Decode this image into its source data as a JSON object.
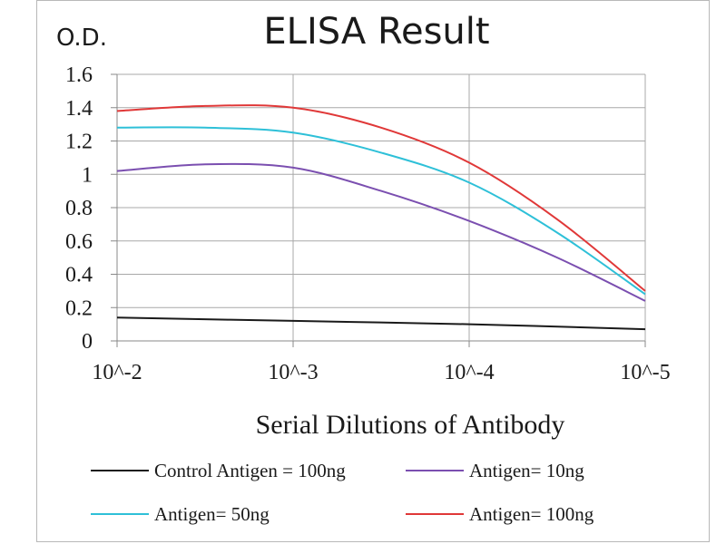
{
  "chart_data": {
    "type": "line",
    "title": "ELISA Result",
    "ylabel": "O.D.",
    "xlabel": "Serial Dilutions  of Antibody",
    "ylim": [
      0,
      1.6
    ],
    "y_ticks": [
      "0",
      "0.2",
      "0.4",
      "0.6",
      "0.8",
      "1",
      "1.2",
      "1.4",
      "1.6"
    ],
    "categories": [
      "10^-2",
      "10^-3",
      "10^-4",
      "10^-5"
    ],
    "grid": true,
    "legend_position": "bottom",
    "series": [
      {
        "name": "Control Antigen = 100ng",
        "color": "#1a1a1a",
        "points": [
          [
            0,
            0.14
          ],
          [
            1,
            0.12
          ],
          [
            2,
            0.1
          ],
          [
            3,
            0.07
          ]
        ]
      },
      {
        "name": "Antigen= 10ng",
        "color": "#7b4fb0",
        "points": [
          [
            0,
            1.02
          ],
          [
            0.5,
            1.06
          ],
          [
            1,
            1.04
          ],
          [
            1.5,
            0.9
          ],
          [
            2,
            0.72
          ],
          [
            2.5,
            0.5
          ],
          [
            3,
            0.24
          ]
        ]
      },
      {
        "name": "Antigen= 50ng",
        "color": "#2ec0d8",
        "points": [
          [
            0,
            1.28
          ],
          [
            0.5,
            1.28
          ],
          [
            1,
            1.25
          ],
          [
            1.5,
            1.13
          ],
          [
            2,
            0.95
          ],
          [
            2.5,
            0.65
          ],
          [
            3,
            0.28
          ]
        ]
      },
      {
        "name": "Antigen= 100ng",
        "color": "#e03838",
        "points": [
          [
            0,
            1.38
          ],
          [
            0.5,
            1.41
          ],
          [
            1,
            1.4
          ],
          [
            1.5,
            1.28
          ],
          [
            2,
            1.07
          ],
          [
            2.5,
            0.73
          ],
          [
            3,
            0.3
          ]
        ]
      }
    ]
  }
}
